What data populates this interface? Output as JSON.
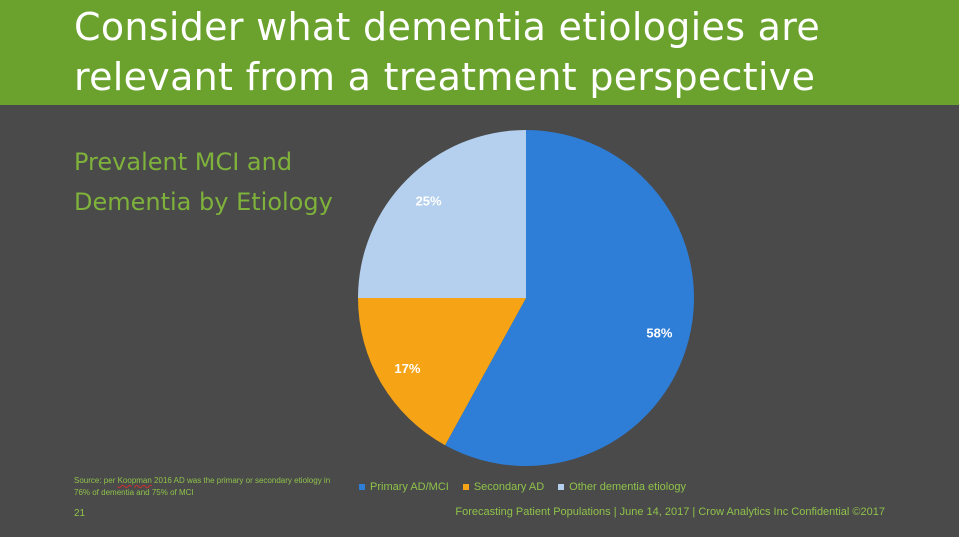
{
  "slide": {
    "title": "Consider what dementia etiologies are relevant from a treatment perspective",
    "subtitle": "Prevalent MCI and Dementia by Etiology",
    "source_prefix": "Source:  per ",
    "source_author": "Koopman",
    "source_rest": " 2016 AD was the primary or secondary etiology in 76% of dementia and 75% of MCI",
    "page_number": "21",
    "footer": "Forecasting Patient Populations | June 14, 2017 | Crow Analytics Inc Confidential ©2017"
  },
  "colors": {
    "title_band": "#6aa22d",
    "background": "#4a4a4a",
    "accent_text": "#7fb23b"
  },
  "chart_data": {
    "type": "pie",
    "title": "",
    "slices": [
      {
        "name": "Primary AD/MCI",
        "value": 58,
        "label": "58%",
        "color": "#2e7dd6",
        "label_color": "#ffffff"
      },
      {
        "name": "Secondary AD",
        "value": 17,
        "label": "17%",
        "color": "#f6a416",
        "label_color": "#ffffff"
      },
      {
        "name": "Other dementia etiology",
        "value": 25,
        "label": "25%",
        "color": "#b5d0ee",
        "label_color": "#ffffff"
      }
    ],
    "start_angle_deg": 0,
    "direction": "clockwise",
    "legend_position": "bottom"
  }
}
